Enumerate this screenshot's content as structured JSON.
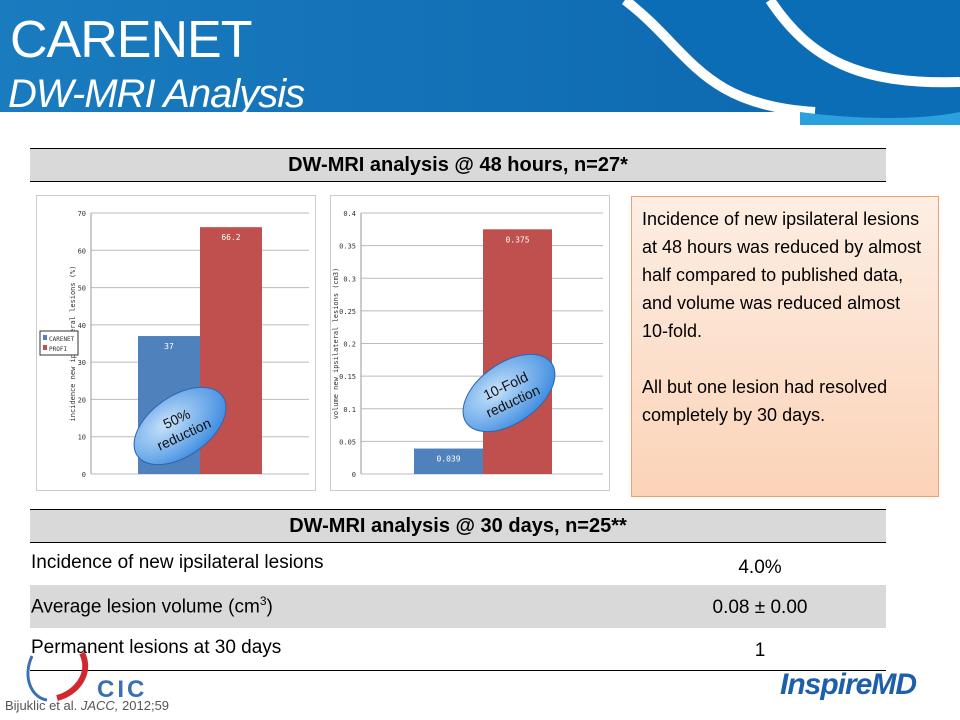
{
  "header": {
    "title": "CARENET",
    "subtitle": "DW-MRI Analysis"
  },
  "section1": {
    "heading": "DW-MRI analysis @ 48 hours, n=27*"
  },
  "chart_data": [
    {
      "type": "bar",
      "categories": [
        "CARENET",
        "PROFI"
      ],
      "values": [
        37,
        66.2
      ],
      "value_labels": [
        "37",
        "66.2"
      ],
      "ylabel": "incidence new ipsilateral lesions (%)",
      "ylim": [
        0,
        70
      ],
      "yticks": [
        "0",
        "10",
        "20",
        "30",
        "40",
        "50",
        "60",
        "70"
      ],
      "tick_values": [
        0,
        10,
        20,
        30,
        40,
        50,
        60,
        70
      ],
      "legend": [
        "CARENET",
        "PROFI"
      ],
      "legend_position": "left",
      "colors": [
        "#4f81bd",
        "#c0504d"
      ],
      "annotation": [
        "50%",
        "reduction"
      ],
      "grid": true
    },
    {
      "type": "bar",
      "categories": [
        "CARENET",
        "PROFI"
      ],
      "values": [
        0.039,
        0.375
      ],
      "value_labels": [
        "0.039",
        "0.375"
      ],
      "ylabel": "volume new ipsilateral lesions (cm3)",
      "ylim": [
        0,
        0.4
      ],
      "yticks": [
        "0",
        "0.05",
        "0.1",
        "0.15",
        "0.2",
        "0.25",
        "0.3",
        "0.35",
        "0.4"
      ],
      "tick_values": [
        0,
        0.05,
        0.1,
        0.15,
        0.2,
        0.25,
        0.3,
        0.35,
        0.4
      ],
      "colors": [
        "#4f81bd",
        "#c0504d"
      ],
      "annotation": [
        "10-Fold",
        "reduction"
      ],
      "grid": true
    }
  ],
  "note": {
    "p1": "Incidence of new ipsilateral lesions at 48 hours was reduced by almost half compared to published data, and volume was reduced almost 10-fold.",
    "p2": "All but one lesion had resolved completely by 30 days."
  },
  "section2": {
    "heading": "DW-MRI analysis @ 30 days, n=25**",
    "rows": [
      {
        "label": "Incidence of new ipsilateral lesions",
        "value": "4.0%"
      },
      {
        "label": "Average lesion volume (cm",
        "sup": "3",
        "label_end": ")",
        "value": "0.08 ± 0.00"
      },
      {
        "label": "Permanent lesions at 30 days",
        "value": "1"
      }
    ]
  },
  "footer": {
    "citation_authors": "Bijuklic et al.",
    "citation_journal": "JACC,",
    "citation_rest": " 2012;59",
    "logo_left": "CIC",
    "logo_right": "InspireMD"
  }
}
